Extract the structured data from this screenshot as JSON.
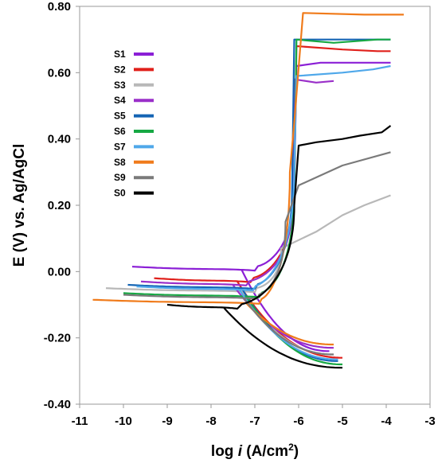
{
  "chart_data": {
    "type": "line",
    "xlabel_prefix": "log ",
    "xlabel_var": "i",
    "xlabel_unit": " (A/cm",
    "xlabel_sup": "2",
    "xlabel_close": ")",
    "ylabel": "E (V) vs. Ag/AgCl",
    "xlim": [
      -11,
      -3
    ],
    "ylim": [
      -0.4,
      0.8
    ],
    "xticks": [
      -11,
      -10,
      -9,
      -8,
      -7,
      -6,
      -5,
      -4,
      -3
    ],
    "xtick_labels": [
      "-11",
      "-10",
      "-9",
      "-8",
      "-7",
      "-6",
      "-5",
      "-4",
      "-3"
    ],
    "yticks": [
      -0.4,
      -0.2,
      0.0,
      0.2,
      0.4,
      0.6,
      0.8
    ],
    "ytick_labels": [
      "-0.40",
      "-0.20",
      "0.00",
      "0.20",
      "0.40",
      "0.60",
      "0.80"
    ],
    "grid": false,
    "legend_position": "top-left",
    "series": [
      {
        "name": "S1",
        "color": "#8B1FD6",
        "ecorr": 0.015,
        "x_start": -9.8,
        "icorr_log": -7.0,
        "cath_end": [
          -5.3,
          -0.24
        ],
        "anodic": [
          [
            -6.1,
            0.25
          ],
          [
            -6.05,
            0.62
          ],
          [
            -5.5,
            0.63
          ],
          [
            -4.5,
            0.63
          ],
          [
            -3.9,
            0.63
          ]
        ]
      },
      {
        "name": "S2",
        "color": "#E0201B",
        "ecorr": -0.02,
        "x_start": -9.3,
        "icorr_log": -7.1,
        "cath_end": [
          -5.0,
          -0.26
        ],
        "anodic": [
          [
            -6.1,
            0.25
          ],
          [
            -6.05,
            0.68
          ],
          [
            -5.0,
            0.67
          ],
          [
            -4.2,
            0.665
          ],
          [
            -3.9,
            0.665
          ]
        ]
      },
      {
        "name": "S3",
        "color": "#B8B8B8",
        "ecorr": -0.05,
        "x_start": -10.4,
        "icorr_log": -7.0,
        "cath_end": [
          -5.2,
          -0.25
        ],
        "anodic": [
          [
            -6.4,
            0.07
          ],
          [
            -5.6,
            0.12
          ],
          [
            -5.0,
            0.17
          ],
          [
            -4.5,
            0.2
          ],
          [
            -3.9,
            0.23
          ]
        ]
      },
      {
        "name": "S4",
        "color": "#9A2FC9",
        "ecorr": -0.03,
        "x_start": -9.6,
        "icorr_log": -7.2,
        "cath_end": [
          -5.2,
          -0.23
        ],
        "anodic": [
          [
            -6.15,
            0.2
          ],
          [
            -6.1,
            0.58
          ],
          [
            -5.6,
            0.57
          ],
          [
            -5.2,
            0.575
          ]
        ]
      },
      {
        "name": "S5",
        "color": "#1464B4",
        "ecorr": -0.04,
        "x_start": -9.9,
        "icorr_log": -7.0,
        "cath_end": [
          -5.1,
          -0.27
        ],
        "anodic": [
          [
            -6.15,
            0.25
          ],
          [
            -6.1,
            0.7
          ],
          [
            -5.0,
            0.7
          ],
          [
            -4.2,
            0.7
          ],
          [
            -3.9,
            0.7
          ]
        ]
      },
      {
        "name": "S6",
        "color": "#16A843",
        "ecorr": -0.065,
        "x_start": -10.0,
        "icorr_log": -6.9,
        "cath_end": [
          -5.0,
          -0.28
        ],
        "anodic": [
          [
            -6.1,
            0.25
          ],
          [
            -6.05,
            0.7
          ],
          [
            -5.2,
            0.69
          ],
          [
            -4.2,
            0.7
          ],
          [
            -3.9,
            0.7
          ]
        ]
      },
      {
        "name": "S7",
        "color": "#4FA8EA",
        "ecorr": -0.045,
        "x_start": -9.7,
        "icorr_log": -7.05,
        "cath_end": [
          -5.1,
          -0.265
        ],
        "anodic": [
          [
            -6.1,
            0.3
          ],
          [
            -6.05,
            0.59
          ],
          [
            -5.0,
            0.6
          ],
          [
            -4.3,
            0.61
          ],
          [
            -3.9,
            0.62
          ]
        ]
      },
      {
        "name": "S8",
        "color": "#F07B1B",
        "ecorr": -0.085,
        "x_start": -10.7,
        "icorr_log": -6.9,
        "cath_end": [
          -5.2,
          -0.22
        ],
        "anodic": [
          [
            -6.2,
            0.3
          ],
          [
            -6.1,
            0.45
          ],
          [
            -5.9,
            0.78
          ],
          [
            -4.5,
            0.775
          ],
          [
            -3.6,
            0.775
          ]
        ]
      },
      {
        "name": "S9",
        "color": "#7A7A7A",
        "ecorr": -0.07,
        "x_start": -10.0,
        "icorr_log": -6.95,
        "cath_end": [
          -5.2,
          -0.25
        ],
        "anodic": [
          [
            -6.3,
            0.15
          ],
          [
            -6.0,
            0.26
          ],
          [
            -5.5,
            0.29
          ],
          [
            -5.0,
            0.32
          ],
          [
            -3.9,
            0.36
          ]
        ]
      },
      {
        "name": "S0",
        "color": "#000000",
        "ecorr": -0.1,
        "x_start": -9.0,
        "icorr_log": -7.4,
        "cath_end": [
          -5.0,
          -0.29
        ],
        "anodic": [
          [
            -6.1,
            0.2
          ],
          [
            -6.0,
            0.38
          ],
          [
            -5.6,
            0.39
          ],
          [
            -5.0,
            0.4
          ],
          [
            -4.6,
            0.41
          ],
          [
            -4.1,
            0.42
          ],
          [
            -3.9,
            0.44
          ]
        ]
      }
    ]
  }
}
